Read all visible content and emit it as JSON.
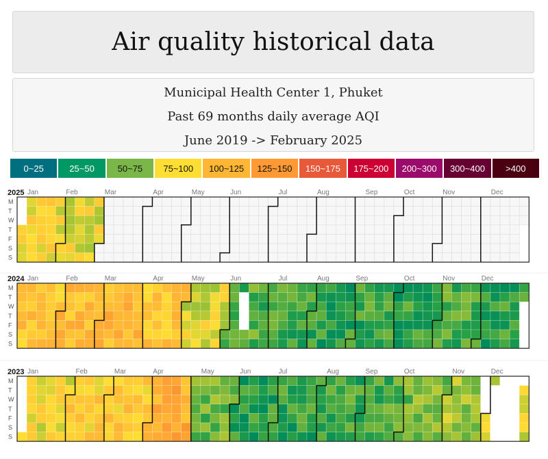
{
  "header": {
    "title": "Air quality historical data"
  },
  "info": {
    "station": "Municipal Health Center 1, Phuket",
    "period": "Past 69 months daily average AQI",
    "range": "June 2019 -> February 2025"
  },
  "legend": [
    {
      "label": "0~25",
      "color": "#006f7f",
      "text_color": "#ffffff"
    },
    {
      "label": "25~50",
      "color": "#009966",
      "text_color": "#ffffff"
    },
    {
      "label": "50~75",
      "color": "#7ab648",
      "text_color": "#111111"
    },
    {
      "label": "75~100",
      "color": "#ffde33",
      "text_color": "#111111"
    },
    {
      "label": "100~125",
      "color": "#ffb634",
      "text_color": "#111111"
    },
    {
      "label": "125~150",
      "color": "#ff9933",
      "text_color": "#111111"
    },
    {
      "label": "150~175",
      "color": "#e8593a",
      "text_color": "#ffffff"
    },
    {
      "label": "175~200",
      "color": "#cc0033",
      "text_color": "#ffffff"
    },
    {
      "label": "200~300",
      "color": "#9b0b6b",
      "text_color": "#ffffff"
    },
    {
      "label": "300~400",
      "color": "#660033",
      "text_color": "#ffffff"
    },
    {
      "label": ">400",
      "color": "#4a0010",
      "text_color": "#ffffff"
    }
  ],
  "chart_data": {
    "type": "heatmap",
    "weekday_labels": [
      "M",
      "T",
      "W",
      "T",
      "F",
      "S",
      "S"
    ],
    "month_labels": [
      "Jan",
      "Feb",
      "Mar",
      "Apr",
      "May",
      "Jun",
      "Jul",
      "Aug",
      "Sep",
      "Oct",
      "Nov",
      "Dec"
    ],
    "value_unit": "AQI (daily average)",
    "years": [
      {
        "year": "2025",
        "monthly_typical_aqi": [
          82,
          80,
          null,
          null,
          null,
          null,
          null,
          null,
          null,
          null,
          null,
          null
        ],
        "missing": [
          "2025-01-01"
        ]
      },
      {
        "year": "2024",
        "monthly_typical_aqi": [
          92,
          96,
          100,
          92,
          78,
          56,
          52,
          50,
          52,
          50,
          55,
          50
        ],
        "missing": [
          "2024-06-11",
          "2024-06-12",
          "2024-06-13",
          "2024-06-14"
        ]
      },
      {
        "year": "2023",
        "monthly_typical_aqi": [
          82,
          88,
          90,
          102,
          60,
          48,
          50,
          52,
          55,
          62,
          68,
          80
        ],
        "missing": [
          "2023-11-27",
          "2023-11-28",
          "2023-11-29",
          "2023-11-30",
          "2023-12-05",
          "2023-12-06",
          "2023-12-07",
          "2023-12-08",
          "2023-12-09",
          "2023-12-10",
          "2023-12-11",
          "2023-12-12",
          "2023-12-13",
          "2023-12-14",
          "2023-12-15",
          "2023-12-16",
          "2023-12-17",
          "2023-12-18",
          "2023-12-19",
          "2023-12-20",
          "2023-12-21",
          "2023-12-22",
          "2023-12-23",
          "2023-12-24",
          "2023-12-25"
        ]
      }
    ]
  }
}
